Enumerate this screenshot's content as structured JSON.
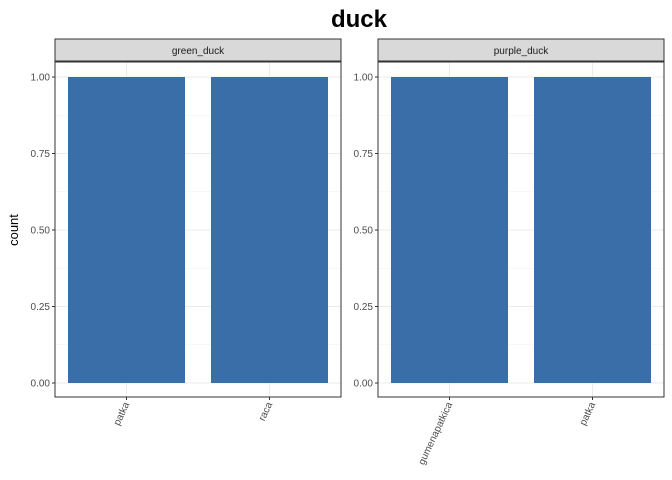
{
  "chart_data": {
    "type": "bar",
    "title": "duck",
    "ylabel": "count",
    "ylim": [
      0,
      1.05
    ],
    "yticks": [
      0,
      0.25,
      0.5,
      0.75,
      1.0
    ],
    "ytick_labels": [
      "0.00",
      "0.25",
      "0.50",
      "0.75",
      "1.00"
    ],
    "grid": true,
    "facets": [
      {
        "name": "green_duck",
        "categories": [
          "patka",
          "raca"
        ],
        "values": [
          1,
          1
        ]
      },
      {
        "name": "purple_duck",
        "categories": [
          "gumenapatkica",
          "patka"
        ],
        "values": [
          1,
          1
        ]
      }
    ],
    "bar_color": "#3A6EA8"
  }
}
